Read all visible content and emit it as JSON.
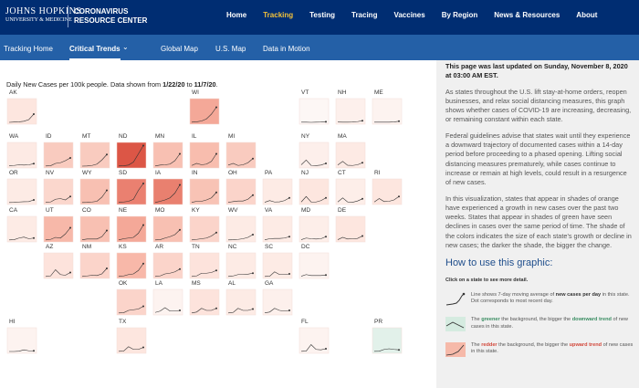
{
  "header": {
    "logo_top": "JOHNS HOPKINS",
    "logo_bottom": "UNIVERSITY & MEDICINE",
    "site_top": "CORONAVIRUS",
    "site_bottom": "RESOURCE CENTER",
    "nav": [
      "Home",
      "Tracking",
      "Testing",
      "Tracing",
      "Vaccines",
      "By Region",
      "News & Resources",
      "About"
    ],
    "active_nav": 1
  },
  "subnav": {
    "items": [
      "Tracking Home",
      "Critical Trends",
      "Global Map",
      "U.S. Map",
      "Data in Motion"
    ],
    "active": 1
  },
  "map": {
    "caption_parts": [
      "Daily New Cases per 100k people. Data shown from ",
      "1/22/20",
      " to ",
      "11/7/20",
      "."
    ],
    "spark_ylim": [
      0,
      160
    ],
    "line_color": "#333333",
    "states": [
      {
        "label": "AK",
        "col": 0,
        "row": 0,
        "color": "#fde6df",
        "spark": [
          0,
          2,
          4,
          8,
          20,
          60
        ]
      },
      {
        "label": "WI",
        "col": 5,
        "row": 0,
        "color": "#f4a898",
        "spark": [
          1,
          4,
          10,
          25,
          60,
          110
        ]
      },
      {
        "label": "VT",
        "col": 8,
        "row": 0,
        "color": "#fdf7f5",
        "spark": [
          1,
          1,
          0,
          1,
          2,
          4
        ]
      },
      {
        "label": "NH",
        "col": 9,
        "row": 0,
        "color": "#fdf0ec",
        "spark": [
          2,
          1,
          1,
          2,
          5,
          12
        ]
      },
      {
        "label": "ME",
        "col": 10,
        "row": 0,
        "color": "#fdf3f0",
        "spark": [
          1,
          1,
          1,
          1,
          3,
          8
        ]
      },
      {
        "label": "WA",
        "col": 0,
        "row": 1,
        "color": "#fdeae4",
        "spark": [
          3,
          5,
          10,
          8,
          10,
          18
        ]
      },
      {
        "label": "ID",
        "col": 1,
        "row": 1,
        "color": "#f9cbbf",
        "spark": [
          1,
          3,
          20,
          25,
          40,
          60
        ]
      },
      {
        "label": "MT",
        "col": 2,
        "row": 1,
        "color": "#f9cbbf",
        "spark": [
          0,
          1,
          5,
          15,
          45,
          85
        ]
      },
      {
        "label": "ND",
        "col": 3,
        "row": 1,
        "color": "#dc5646",
        "spark": [
          1,
          3,
          8,
          30,
          90,
          150
        ]
      },
      {
        "label": "MN",
        "col": 4,
        "row": 1,
        "color": "#f8c0b2",
        "spark": [
          1,
          8,
          10,
          15,
          40,
          90
        ]
      },
      {
        "label": "IL",
        "col": 5,
        "row": 1,
        "color": "#f8bdae",
        "spark": [
          5,
          20,
          10,
          15,
          35,
          90
        ]
      },
      {
        "label": "MI",
        "col": 6,
        "row": 1,
        "color": "#f9cbbf",
        "spark": [
          8,
          20,
          5,
          10,
          25,
          55
        ]
      },
      {
        "label": "NY",
        "col": 8,
        "row": 1,
        "color": "#fdefeb",
        "spark": [
          10,
          45,
          5,
          4,
          8,
          20
        ]
      },
      {
        "label": "MA",
        "col": 9,
        "row": 1,
        "color": "#fdeae4",
        "spark": [
          8,
          35,
          6,
          5,
          10,
          25
        ]
      },
      {
        "label": "OR",
        "col": 0,
        "row": 2,
        "color": "#fdebe5",
        "spark": [
          1,
          2,
          5,
          7,
          8,
          20
        ]
      },
      {
        "label": "NV",
        "col": 1,
        "row": 2,
        "color": "#fbd7cd",
        "spark": [
          2,
          5,
          25,
          30,
          20,
          45
        ]
      },
      {
        "label": "WY",
        "col": 2,
        "row": 2,
        "color": "#f8c0b2",
        "spark": [
          1,
          2,
          5,
          10,
          40,
          90
        ]
      },
      {
        "label": "SD",
        "col": 3,
        "row": 2,
        "color": "#ea8070",
        "spark": [
          1,
          5,
          10,
          25,
          90,
          140
        ]
      },
      {
        "label": "IA",
        "col": 4,
        "row": 2,
        "color": "#e9806f",
        "spark": [
          1,
          10,
          20,
          35,
          70,
          130
        ]
      },
      {
        "label": "IN",
        "col": 5,
        "row": 2,
        "color": "#f8c3b5",
        "spark": [
          2,
          10,
          10,
          20,
          35,
          75
        ]
      },
      {
        "label": "OH",
        "col": 6,
        "row": 2,
        "color": "#fbd4ca",
        "spark": [
          2,
          8,
          12,
          12,
          25,
          55
        ]
      },
      {
        "label": "PA",
        "col": 7,
        "row": 2,
        "color": "#fdebe5",
        "spark": [
          3,
          15,
          5,
          6,
          15,
          35
        ]
      },
      {
        "label": "NJ",
        "col": 8,
        "row": 2,
        "color": "#fde6df",
        "spark": [
          5,
          45,
          5,
          5,
          15,
          35
        ]
      },
      {
        "label": "CT",
        "col": 9,
        "row": 2,
        "color": "#fdeee9",
        "spark": [
          5,
          35,
          5,
          3,
          12,
          28
        ]
      },
      {
        "label": "RI",
        "col": 10,
        "row": 2,
        "color": "#fde6df",
        "spark": [
          5,
          30,
          8,
          10,
          20,
          45
        ]
      },
      {
        "label": "CA",
        "col": 0,
        "row": 3,
        "color": "#fdebe5",
        "spark": [
          1,
          3,
          15,
          22,
          10,
          15
        ]
      },
      {
        "label": "UT",
        "col": 1,
        "row": 3,
        "color": "#f7b8a9",
        "spark": [
          1,
          5,
          20,
          15,
          45,
          90
        ]
      },
      {
        "label": "CO",
        "col": 2,
        "row": 3,
        "color": "#f8c0b2",
        "spark": [
          2,
          8,
          8,
          8,
          25,
          70
        ]
      },
      {
        "label": "NE",
        "col": 3,
        "row": 3,
        "color": "#f4a898",
        "spark": [
          1,
          10,
          15,
          20,
          50,
          110
        ]
      },
      {
        "label": "MO",
        "col": 4,
        "row": 3,
        "color": "#f8c0b2",
        "spark": [
          1,
          3,
          15,
          25,
          40,
          75
        ]
      },
      {
        "label": "KY",
        "col": 5,
        "row": 3,
        "color": "#fbd4ca",
        "spark": [
          1,
          5,
          10,
          15,
          30,
          55
        ]
      },
      {
        "label": "WV",
        "col": 6,
        "row": 3,
        "color": "#fdebe5",
        "spark": [
          1,
          2,
          5,
          10,
          20,
          40
        ]
      },
      {
        "label": "VA",
        "col": 7,
        "row": 3,
        "color": "#fdebe5",
        "spark": [
          2,
          10,
          12,
          12,
          15,
          25
        ]
      },
      {
        "label": "MD",
        "col": 8,
        "row": 3,
        "color": "#fdeee9",
        "spark": [
          3,
          15,
          10,
          8,
          10,
          25
        ]
      },
      {
        "label": "DE",
        "col": 9,
        "row": 3,
        "color": "#fde6df",
        "spark": [
          3,
          20,
          8,
          10,
          12,
          30
        ]
      },
      {
        "label": "AZ",
        "col": 1,
        "row": 4,
        "color": "#fde3dc",
        "spark": [
          1,
          5,
          50,
          15,
          10,
          30
        ]
      },
      {
        "label": "NM",
        "col": 2,
        "row": 4,
        "color": "#fbd4ca",
        "spark": [
          1,
          5,
          10,
          8,
          20,
          60
        ]
      },
      {
        "label": "KS",
        "col": 3,
        "row": 4,
        "color": "#f8b8a9",
        "spark": [
          1,
          5,
          15,
          20,
          45,
          95
        ]
      },
      {
        "label": "AR",
        "col": 4,
        "row": 4,
        "color": "#fbd4ca",
        "spark": [
          1,
          5,
          20,
          25,
          35,
          55
        ]
      },
      {
        "label": "TN",
        "col": 5,
        "row": 4,
        "color": "#fde3dc",
        "spark": [
          1,
          5,
          25,
          25,
          30,
          45
        ]
      },
      {
        "label": "NC",
        "col": 6,
        "row": 4,
        "color": "#fdebe5",
        "spark": [
          1,
          5,
          15,
          15,
          18,
          25
        ]
      },
      {
        "label": "SC",
        "col": 7,
        "row": 4,
        "color": "#fdebe5",
        "spark": [
          1,
          3,
          35,
          15,
          15,
          20
        ]
      },
      {
        "label": "DC",
        "col": 8,
        "row": 4,
        "color": "#fdf3f0",
        "spark": [
          3,
          15,
          8,
          8,
          8,
          12
        ]
      },
      {
        "label": "OK",
        "col": 3,
        "row": 5,
        "color": "#fbd4ca",
        "spark": [
          1,
          3,
          20,
          25,
          30,
          50
        ]
      },
      {
        "label": "LA",
        "col": 4,
        "row": 5,
        "color": "#fdf3f0",
        "spark": [
          5,
          15,
          40,
          15,
          15,
          20
        ]
      },
      {
        "label": "MS",
        "col": 5,
        "row": 5,
        "color": "#fde3dc",
        "spark": [
          1,
          8,
          35,
          20,
          20,
          35
        ]
      },
      {
        "label": "AL",
        "col": 6,
        "row": 5,
        "color": "#fdebe5",
        "spark": [
          1,
          5,
          35,
          20,
          20,
          30
        ]
      },
      {
        "label": "GA",
        "col": 7,
        "row": 5,
        "color": "#fdf0ec",
        "spark": [
          2,
          8,
          35,
          20,
          15,
          20
        ]
      },
      {
        "label": "HI",
        "col": 0,
        "row": 6,
        "color": "#fdf3f0",
        "spark": [
          0,
          0,
          2,
          12,
          5,
          5
        ]
      },
      {
        "label": "TX",
        "col": 3,
        "row": 6,
        "color": "#fde6df",
        "spark": [
          1,
          3,
          35,
          15,
          15,
          30
        ]
      },
      {
        "label": "FL",
        "col": 8,
        "row": 6,
        "color": "#fdf3f0",
        "spark": [
          1,
          3,
          50,
          15,
          12,
          20
        ]
      },
      {
        "label": "PR",
        "col": 10,
        "row": 6,
        "color": "#e2f1ea",
        "spark": [
          1,
          2,
          15,
          20,
          15,
          12
        ]
      }
    ]
  },
  "panel": {
    "updated": "This page was last updated on Sunday, November 8, 2020 at 03:00 AM EST.",
    "paragraphs": [
      "As states throughout the U.S. lift stay-at-home orders, reopen businesses, and relax social distancing measures, this graph shows whether cases of COVID-19 are increasing, decreasing, or remaining constant within each state.",
      "Federal guidelines advise that states wait until they experience a downward trajectory of documented cases within a 14-day period before proceeding to a phased opening. Lifting social distancing measures prematurely, while cases continue to increase or remain at high levels, could result in a resurgence of new cases.",
      "In this visualization, states that appear in shades of orange have experienced a growth in new cases over the past two weeks. States that appear in shades of green have seen declines in cases over the same period of time. The shade of the colors indicates the size of each state's growth or decline in new cases; the darker the shade, the bigger the change."
    ],
    "how_title": "How to use this graphic:",
    "click_note": "Click on a state to see more detail.",
    "legend": [
      [
        "Line shows 7-day moving average of ",
        "new cases per day",
        " in this state. Dot corresponds to most recent day."
      ],
      [
        "The ",
        "greener",
        " the background, the bigger the ",
        "downward trend",
        " of new cases in this state."
      ],
      [
        "The ",
        "redder",
        " the background, the bigger the ",
        "upward trend",
        " of new cases in this state."
      ]
    ]
  }
}
